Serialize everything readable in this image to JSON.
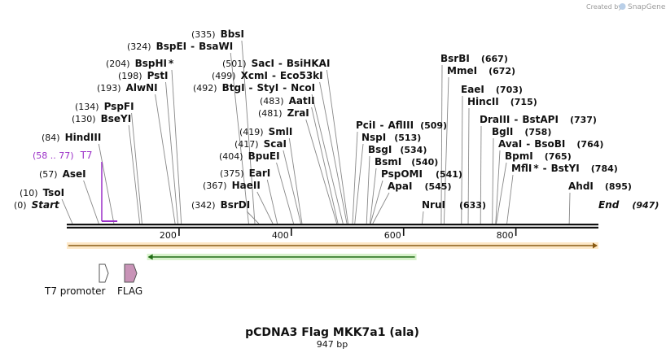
{
  "credit": {
    "prefix": "Created by",
    "brand": "SnapGene"
  },
  "title": "pCDNA3 Flag MKK7a1 (ala)",
  "length_label": "947 bp",
  "total_bp": 947,
  "start_label": "Start",
  "start_pos": "(0)",
  "end_label": "End",
  "end_pos": "(947)",
  "ruler_ticks": [
    200,
    400,
    600,
    800
  ],
  "primer": {
    "name": "T7",
    "range": "(58 .. 77)",
    "start": 58,
    "end": 77,
    "color": "#9b30c8"
  },
  "enzymes_left": [
    {
      "name": "BbsI",
      "pos": "(335)",
      "site": 335
    },
    {
      "name": "BspEI",
      "name2": "BsaWI",
      "pos": "(324)",
      "site": 324
    },
    {
      "name": "BspHI",
      "star": "*",
      "pos": "(204)",
      "site": 204
    },
    {
      "name": "PstI",
      "pos": "(198)",
      "site": 198
    },
    {
      "name": "AlwNI",
      "pos": "(193)",
      "site": 193
    },
    {
      "name": "PspFI",
      "pos": "(134)",
      "site": 134
    },
    {
      "name": "BseYI",
      "pos": "(130)",
      "site": 130
    },
    {
      "name": "HindIII",
      "pos": "(84)",
      "site": 84
    },
    {
      "name": "AseI",
      "pos": "(57)",
      "site": 57
    },
    {
      "name": "TsoI",
      "pos": "(10)",
      "site": 10
    }
  ],
  "enzymes_mid": [
    {
      "name": "SacI",
      "name2": "BsiHKAI",
      "pos": "(501)",
      "site": 501
    },
    {
      "name": "XcmI",
      "name2": "Eco53kI",
      "pos": "(499)",
      "site": 499
    },
    {
      "name": "BtgI",
      "name2": "StyI",
      "name3": "NcoI",
      "pos": "(492)",
      "site": 492
    },
    {
      "name": "AatII",
      "pos": "(483)",
      "site": 483
    },
    {
      "name": "ZraI",
      "pos": "(481)",
      "site": 481
    },
    {
      "name": "SmlI",
      "pos": "(419)",
      "site": 419
    },
    {
      "name": "ScaI",
      "pos": "(417)",
      "site": 417
    },
    {
      "name": "BpuEI",
      "pos": "(404)",
      "site": 404
    },
    {
      "name": "EarI",
      "pos": "(375)",
      "site": 375
    },
    {
      "name": "HaeII",
      "pos": "(367)",
      "site": 367
    },
    {
      "name": "BsrDI",
      "pos": "(342)",
      "site": 342
    }
  ],
  "enzymes_right1": [
    {
      "name": "PciI",
      "name2": "AflIII",
      "pos": "(509)",
      "site": 509
    },
    {
      "name": "NspI",
      "pos": "(513)",
      "site": 513
    },
    {
      "name": "BsgI",
      "pos": "(534)",
      "site": 534
    },
    {
      "name": "BsmI",
      "pos": "(540)",
      "site": 540
    },
    {
      "name": "PspOMI",
      "pos": "(541)",
      "site": 541
    },
    {
      "name": "ApaI",
      "pos": "(545)",
      "site": 545
    },
    {
      "name": "NruI",
      "pos": "(633)",
      "site": 633
    }
  ],
  "enzymes_right2": [
    {
      "name": "BsrBI",
      "pos": "(667)",
      "site": 667
    },
    {
      "name": "MmeI",
      "pos": "(672)",
      "site": 672
    },
    {
      "name": "EaeI",
      "pos": "(703)",
      "site": 703
    },
    {
      "name": "HincII",
      "pos": "(715)",
      "site": 715
    },
    {
      "name": "DraIII",
      "name2": "BstAPI",
      "pos": "(737)",
      "site": 737
    },
    {
      "name": "BglI",
      "pos": "(758)",
      "site": 758
    },
    {
      "name": "AvaI",
      "name2": "BsoBI",
      "pos": "(764)",
      "site": 764
    },
    {
      "name": "BpmI",
      "pos": "(765)",
      "site": 765
    },
    {
      "name": "MflI",
      "star": "*",
      "name2": "BstYI",
      "pos": "(784)",
      "site": 784
    },
    {
      "name": "AhdI",
      "pos": "(895)",
      "site": 895
    }
  ],
  "features": [
    {
      "name": "T7 promoter",
      "color": "#ffffff",
      "start": 58,
      "end": 77
    },
    {
      "name": "FLAG",
      "color": "#c893b7",
      "start": 104,
      "end": 127
    }
  ],
  "tracks": [
    {
      "name": "insert-track",
      "color": "#e8a64a",
      "fill": "#fde8c8",
      "start": 0,
      "end": 947
    },
    {
      "name": "orf-track",
      "color": "#4caf2f",
      "fill": "#d8f2cc",
      "start": 143,
      "end": 623
    }
  ]
}
